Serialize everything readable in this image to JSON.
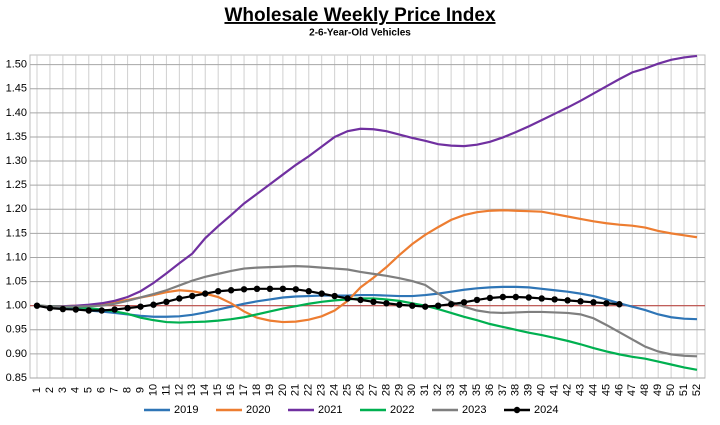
{
  "chart_data": {
    "type": "line",
    "title": "Wholesale Weekly Price Index",
    "subtitle": "2-6-Year-Old Vehicles",
    "categories": [
      "1",
      "2",
      "3",
      "4",
      "5",
      "6",
      "7",
      "8",
      "9",
      "10",
      "11",
      "12",
      "13",
      "14",
      "15",
      "16",
      "17",
      "18",
      "19",
      "20",
      "21",
      "22",
      "23",
      "24",
      "25",
      "26",
      "27",
      "28",
      "29",
      "30",
      "31",
      "32",
      "33",
      "34",
      "35",
      "36",
      "37",
      "38",
      "39",
      "40",
      "41",
      "42",
      "43",
      "44",
      "45",
      "46",
      "47",
      "48",
      "49",
      "50",
      "51",
      "52"
    ],
    "ylim": [
      0.85,
      1.52
    ],
    "yticks": [
      0.85,
      {
        "value": 0.9,
        "label": "0.90"
      },
      0.95,
      {
        "value": 1,
        "label": "1.00"
      },
      1.05,
      {
        "value": 1.1,
        "label": "1.10"
      },
      1.15,
      {
        "value": 1.2,
        "label": "1.20"
      },
      1.25,
      {
        "value": 1.3,
        "label": "1.30"
      },
      1.35,
      {
        "value": 1.4,
        "label": "1.40"
      },
      1.45,
      {
        "value": 1.5,
        "label": "1.50"
      }
    ],
    "grid": true,
    "hline": {
      "value": 1,
      "color": "#c0504d"
    },
    "legend": "bottom",
    "series": [
      {
        "name": "2019",
        "color": "#2e75b6",
        "values": [
          1.0,
          0.998,
          0.995,
          0.993,
          0.99,
          0.988,
          0.985,
          0.982,
          0.979,
          0.977,
          0.977,
          0.978,
          0.981,
          0.986,
          0.992,
          0.998,
          1.004,
          1.009,
          1.013,
          1.017,
          1.019,
          1.02,
          1.021,
          1.021,
          1.021,
          1.022,
          1.022,
          1.021,
          1.02,
          1.02,
          1.022,
          1.025,
          1.029,
          1.033,
          1.036,
          1.038,
          1.039,
          1.039,
          1.038,
          1.035,
          1.032,
          1.029,
          1.025,
          1.02,
          1.013,
          1.005,
          0.998,
          0.991,
          0.982,
          0.976,
          0.973,
          0.972
        ]
      },
      {
        "name": "2020",
        "color": "#ed7d31",
        "values": [
          1.0,
          0.999,
          0.999,
          1.0,
          1.001,
          1.004,
          1.008,
          1.012,
          1.017,
          1.022,
          1.028,
          1.032,
          1.03,
          1.025,
          1.018,
          1.005,
          0.988,
          0.975,
          0.969,
          0.966,
          0.967,
          0.971,
          0.978,
          0.99,
          1.01,
          1.038,
          1.058,
          1.08,
          1.105,
          1.128,
          1.147,
          1.163,
          1.178,
          1.188,
          1.194,
          1.197,
          1.198,
          1.197,
          1.196,
          1.195,
          1.19,
          1.185,
          1.18,
          1.175,
          1.171,
          1.168,
          1.166,
          1.162,
          1.155,
          1.15,
          1.146,
          1.142
        ]
      },
      {
        "name": "2021",
        "color": "#7030a0",
        "values": [
          1.0,
          0.999,
          0.999,
          1.0,
          1.002,
          1.005,
          1.01,
          1.018,
          1.03,
          1.047,
          1.067,
          1.088,
          1.108,
          1.14,
          1.165,
          1.188,
          1.212,
          1.232,
          1.252,
          1.272,
          1.292,
          1.31,
          1.33,
          1.35,
          1.362,
          1.367,
          1.366,
          1.362,
          1.355,
          1.348,
          1.342,
          1.335,
          1.332,
          1.331,
          1.334,
          1.34,
          1.349,
          1.36,
          1.372,
          1.385,
          1.398,
          1.411,
          1.425,
          1.44,
          1.455,
          1.47,
          1.484,
          1.492,
          1.502,
          1.51,
          1.515,
          1.518
        ]
      },
      {
        "name": "2022",
        "color": "#00b050",
        "values": [
          1.0,
          0.999,
          0.998,
          0.997,
          0.995,
          0.992,
          0.988,
          0.983,
          0.975,
          0.97,
          0.966,
          0.965,
          0.966,
          0.967,
          0.969,
          0.972,
          0.976,
          0.982,
          0.988,
          0.994,
          0.999,
          1.004,
          1.008,
          1.011,
          1.013,
          1.015,
          1.015,
          1.013,
          1.01,
          1.005,
          1.0,
          0.993,
          0.985,
          0.977,
          0.97,
          0.962,
          0.956,
          0.95,
          0.944,
          0.939,
          0.933,
          0.927,
          0.92,
          0.912,
          0.905,
          0.899,
          0.894,
          0.89,
          0.884,
          0.878,
          0.872,
          0.867
        ]
      },
      {
        "name": "2023",
        "color": "#7f7f7f",
        "values": [
          1.0,
          0.999,
          0.998,
          0.998,
          0.999,
          1.0,
          1.004,
          1.01,
          1.017,
          1.024,
          1.032,
          1.042,
          1.052,
          1.06,
          1.066,
          1.072,
          1.077,
          1.079,
          1.08,
          1.081,
          1.082,
          1.081,
          1.079,
          1.077,
          1.075,
          1.07,
          1.066,
          1.062,
          1.057,
          1.051,
          1.043,
          1.025,
          1.008,
          0.998,
          0.99,
          0.986,
          0.985,
          0.986,
          0.987,
          0.987,
          0.986,
          0.985,
          0.982,
          0.974,
          0.96,
          0.945,
          0.93,
          0.915,
          0.905,
          0.899,
          0.896,
          0.895
        ]
      },
      {
        "name": "2024",
        "color": "#000000",
        "marker": "circle",
        "values": [
          1.0,
          0.995,
          0.993,
          0.992,
          0.99,
          0.99,
          0.992,
          0.995,
          0.998,
          1.002,
          1.008,
          1.015,
          1.02,
          1.025,
          1.03,
          1.032,
          1.034,
          1.035,
          1.035,
          1.035,
          1.034,
          1.03,
          1.025,
          1.02,
          1.015,
          1.012,
          1.008,
          1.005,
          1.002,
          1.0,
          0.998,
          1.0,
          1.003,
          1.007,
          1.012,
          1.016,
          1.018,
          1.018,
          1.017,
          1.015,
          1.013,
          1.011,
          1.009,
          1.007,
          1.005,
          1.003,
          null,
          null,
          null,
          null,
          null,
          null
        ]
      }
    ]
  }
}
